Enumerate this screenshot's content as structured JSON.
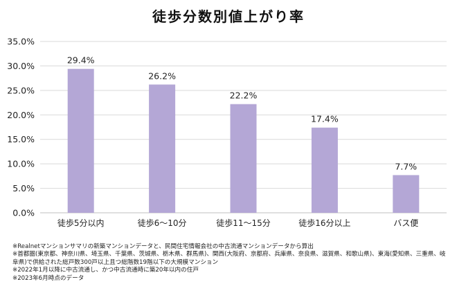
{
  "title": "徒歩分数別値上がり率",
  "chart_data": {
    "type": "bar",
    "categories": [
      "徒歩5分以内",
      "徒歩6～10分",
      "徒歩11～15分",
      "徒歩16分以上",
      "バス便"
    ],
    "values": [
      29.4,
      26.2,
      22.2,
      17.4,
      7.7
    ],
    "value_labels": [
      "29.4%",
      "26.2%",
      "22.2%",
      "17.4%",
      "7.7%"
    ],
    "yticks": [
      0,
      5,
      10,
      15,
      20,
      25,
      30,
      35
    ],
    "ytick_labels": [
      "0.0%",
      "5.0%",
      "10.0%",
      "15.0%",
      "20.0%",
      "25.0%",
      "30.0%",
      "35.0%"
    ],
    "ylim": [
      0,
      35
    ],
    "grid": true,
    "bar_color": "#b4a7d6",
    "grid_color": "#d9d9d9"
  },
  "notes": [
    "※Realnetマンションサマリの新築マンションデータと、民間住宅情報会社の中古流通マンションデータから算出",
    "※首都圏(東京都、神奈川県、埼玉県、千葉県、茨城県、栃木県、群馬県)、関西(大阪府、京都府、兵庫県、奈良県、滋賀県、和歌山県)、東海(愛知県、三重県、岐阜県)で供給された総戸数300戸以上且つ総階数19階以下の大規模マンション",
    "※2022年1月以降に中古流通し、かつ中古流通時に築20年以内の住戸",
    "※2023年6月時点のデータ"
  ]
}
